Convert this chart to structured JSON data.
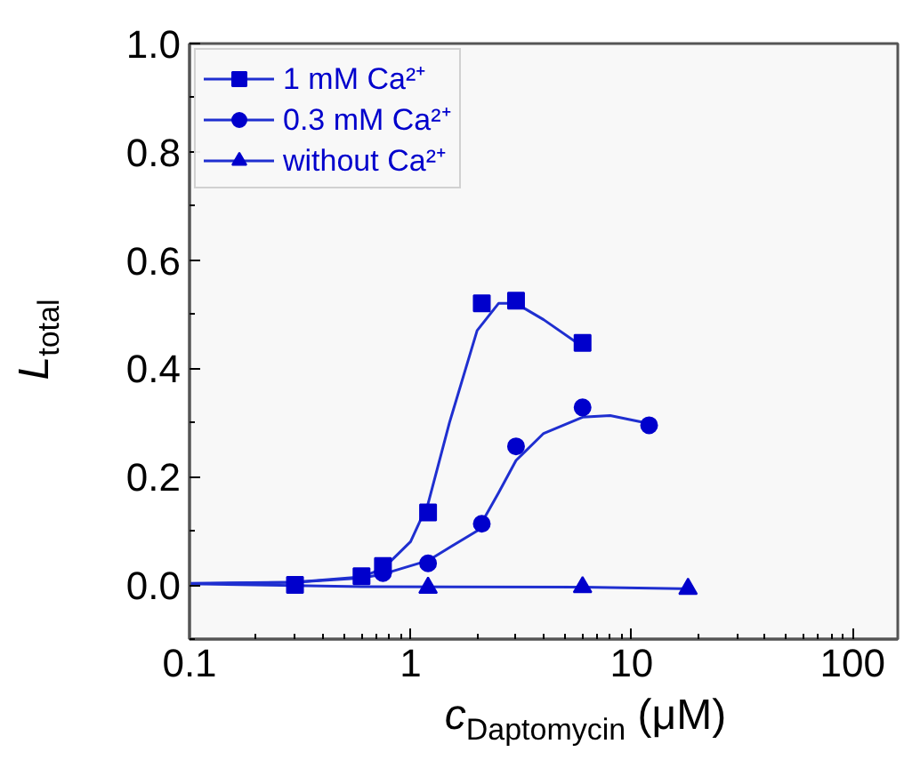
{
  "chart_data": {
    "type": "scatter",
    "xlabel": "c$_{Daptomycin}$ (μM)",
    "ylabel": "L$_{total}$",
    "log": "x",
    "xlim": [
      0.1,
      160
    ],
    "ylim": [
      -0.1,
      1.0
    ],
    "xticks": [
      0.1,
      1,
      10,
      100
    ],
    "yticks": [
      {
        "value": 0,
        "label": "0.0"
      },
      {
        "value": 0.2,
        "label": "0.2"
      },
      {
        "value": 0.4,
        "label": "0.4"
      },
      {
        "value": 0.6,
        "label": "0.6"
      },
      {
        "value": 0.8,
        "label": "0.8"
      },
      {
        "value": 1.0,
        "label": "1.0"
      }
    ],
    "legend": "top left",
    "grid": false,
    "series": [
      {
        "name": "1 mM Ca²⁺",
        "color": "#0000cc",
        "marker": "square",
        "x": [
          0.3,
          0.6,
          0.75,
          1.2,
          2.1,
          3,
          6
        ],
        "values": [
          0.0,
          0.016,
          0.035,
          0.134,
          0.52,
          0.525,
          0.447
        ]
      },
      {
        "type": "line",
        "color": "#1f2fd0",
        "x": [
          0.1,
          0.3,
          0.6,
          0.75,
          1.0,
          1.2,
          1.5,
          2.0,
          2.5,
          3,
          4,
          6
        ],
        "values": [
          0.003,
          0.005,
          0.015,
          0.03,
          0.08,
          0.15,
          0.3,
          0.47,
          0.52,
          0.52,
          0.49,
          0.44
        ]
      },
      {
        "name": "0.3 mM Ca²⁺",
        "color": "#0000cc",
        "marker": "circle",
        "x": [
          0.75,
          1.2,
          2.1,
          3,
          6,
          12
        ],
        "values": [
          0.022,
          0.04,
          0.113,
          0.256,
          0.328,
          0.295
        ]
      },
      {
        "type": "line",
        "color": "#1f2fd0",
        "x": [
          0.1,
          0.3,
          0.6,
          0.75,
          1.2,
          2,
          2.5,
          3,
          4,
          6,
          8,
          12
        ],
        "values": [
          0.002,
          0.005,
          0.013,
          0.02,
          0.045,
          0.1,
          0.17,
          0.23,
          0.28,
          0.31,
          0.313,
          0.298
        ]
      },
      {
        "name": "without Ca²⁺",
        "color": "#0000cc",
        "marker": "triangle",
        "x": [
          1.2,
          6,
          18
        ],
        "values": [
          -0.005,
          -0.004,
          -0.007
        ]
      },
      {
        "type": "line",
        "color": "#1f2fd0",
        "x": [
          0.1,
          0.6,
          6,
          18
        ],
        "values": [
          0.002,
          -0.003,
          -0.004,
          -0.007
        ]
      }
    ]
  }
}
